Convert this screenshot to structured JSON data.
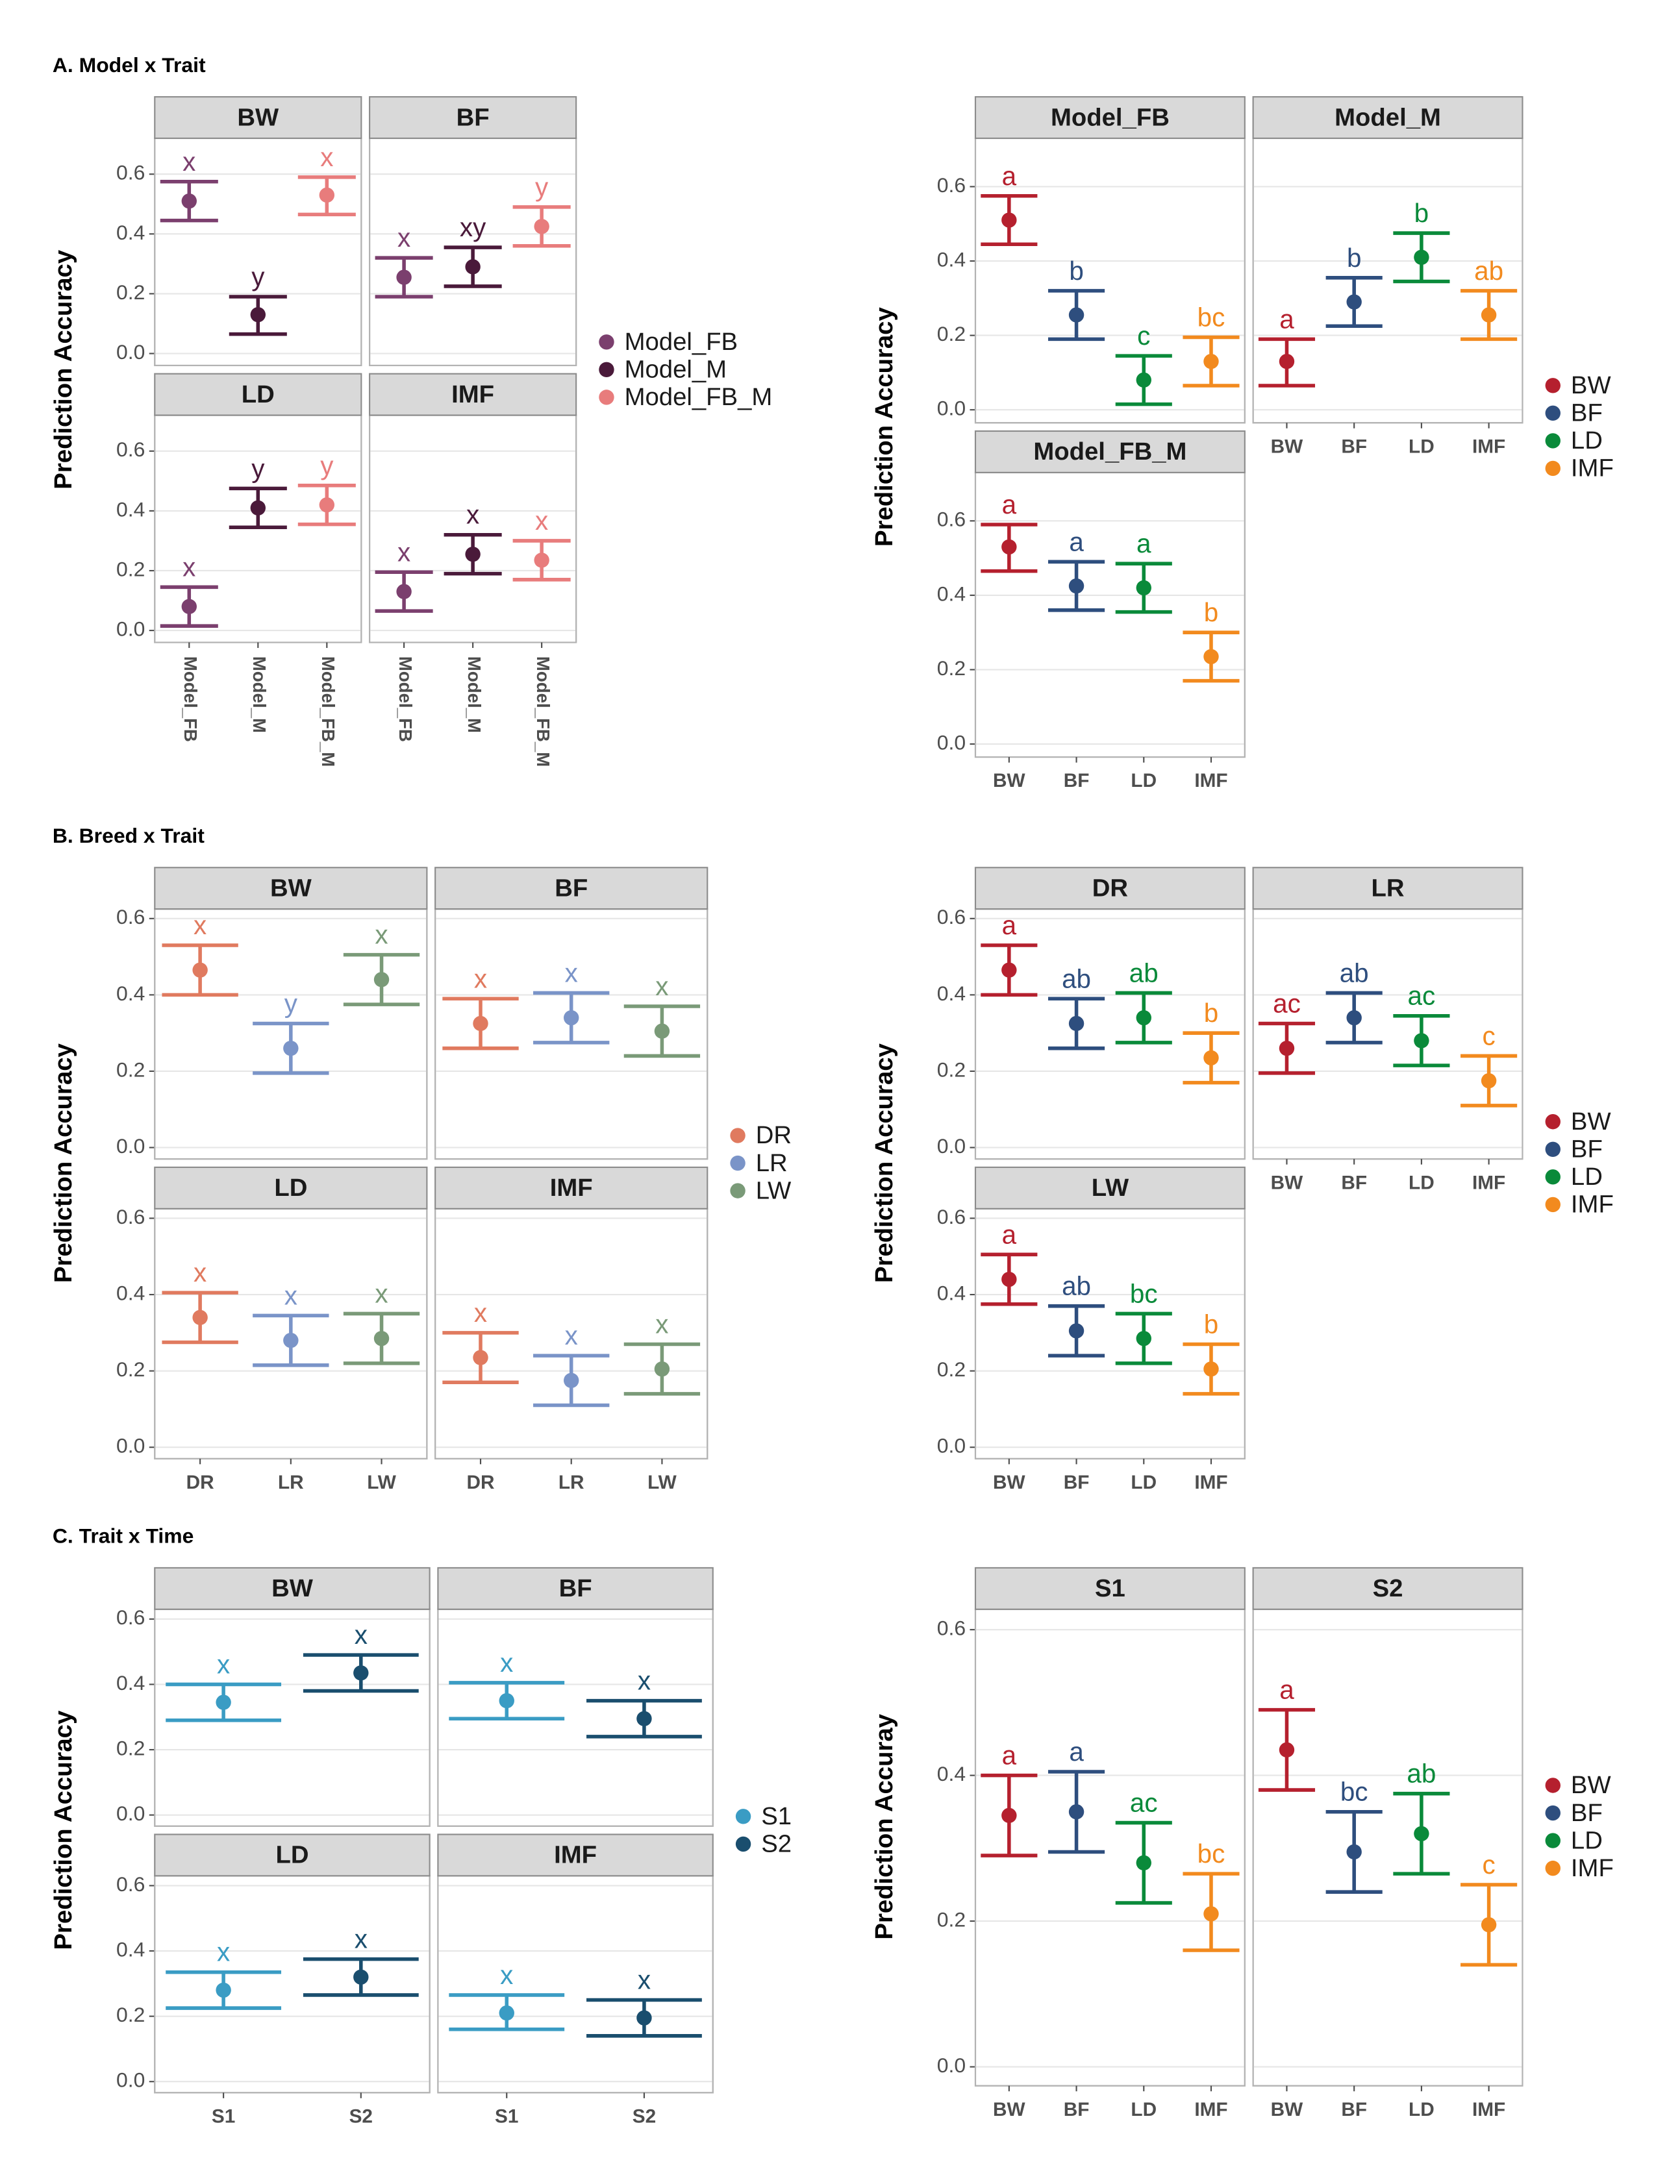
{
  "chart_data": [
    {
      "type": "errorbar",
      "title": "A. Model x Trait",
      "y_label": "Prediction Accuracy",
      "grid": true,
      "rotate_x_labels": true,
      "ylim": [
        -0.04,
        0.72
      ],
      "yticks": [
        {
          "value": 0,
          "label": "0.0"
        },
        0.2,
        0.4,
        0.6
      ],
      "categories": [
        "Model_FB",
        "Model_M",
        "Model_FB_M"
      ],
      "colors": [
        "#7b3f6e",
        "#4a1a3a",
        "#e87c7c"
      ],
      "facets": [
        {
          "title": "BW",
          "values": [
            0.51,
            0.13,
            0.53
          ],
          "lower": [
            0.445,
            0.065,
            0.465
          ],
          "upper": [
            0.575,
            0.19,
            0.59
          ],
          "letters": [
            "x",
            "y",
            "x"
          ]
        },
        {
          "title": "BF",
          "values": [
            0.255,
            0.29,
            0.425
          ],
          "lower": [
            0.19,
            0.225,
            0.36
          ],
          "upper": [
            0.32,
            0.355,
            0.49
          ],
          "letters": [
            "x",
            "xy",
            "y"
          ]
        },
        {
          "title": "LD",
          "values": [
            0.08,
            0.41,
            0.42
          ],
          "lower": [
            0.015,
            0.345,
            0.355
          ],
          "upper": [
            0.145,
            0.475,
            0.485
          ],
          "letters": [
            "x",
            "y",
            "y"
          ]
        },
        {
          "title": "IMF",
          "values": [
            0.13,
            0.255,
            0.235
          ],
          "lower": [
            0.065,
            0.19,
            0.17
          ],
          "upper": [
            0.195,
            0.32,
            0.3
          ],
          "letters": [
            "x",
            "x",
            "x"
          ]
        }
      ]
    },
    {
      "type": "errorbar",
      "y_label": "Prediction Accuracy",
      "grid": true,
      "ylim": [
        -0.035,
        0.73
      ],
      "yticks": [
        {
          "value": 0,
          "label": "0.0"
        },
        0.2,
        0.4,
        0.6
      ],
      "categories": [
        "BW",
        "BF",
        "LD",
        "IMF"
      ],
      "colors": [
        "#b5202e",
        "#2e4e7e",
        "#0a8a3a",
        "#f28a1e"
      ],
      "facets": [
        {
          "title": "Model_FB",
          "values": [
            0.51,
            0.255,
            0.08,
            0.13
          ],
          "lower": [
            0.445,
            0.19,
            0.015,
            0.065
          ],
          "upper": [
            0.575,
            0.32,
            0.145,
            0.195
          ],
          "letters": [
            "a",
            "b",
            "c",
            "bc"
          ]
        },
        {
          "title": "Model_M",
          "values": [
            0.13,
            0.29,
            0.41,
            0.255
          ],
          "lower": [
            0.065,
            0.225,
            0.345,
            0.19
          ],
          "upper": [
            0.19,
            0.355,
            0.475,
            0.32
          ],
          "letters": [
            "a",
            "b",
            "b",
            "ab"
          ]
        },
        {
          "title": "Model_FB_M",
          "values": [
            0.53,
            0.425,
            0.42,
            0.235
          ],
          "lower": [
            0.465,
            0.36,
            0.355,
            0.17
          ],
          "upper": [
            0.59,
            0.49,
            0.485,
            0.3
          ],
          "letters": [
            "a",
            "a",
            "a",
            "b"
          ]
        }
      ]
    },
    {
      "type": "errorbar",
      "title": "B. Breed x Trait",
      "y_label": "Prediction Accuracy",
      "grid": true,
      "ylim": [
        -0.03,
        0.625
      ],
      "yticks": [
        {
          "value": 0,
          "label": "0.0"
        },
        0.2,
        0.4,
        0.6
      ],
      "categories": [
        "DR",
        "LR",
        "LW"
      ],
      "colors": [
        "#e07a5f",
        "#7a94c8",
        "#7a9a78"
      ],
      "facets": [
        {
          "title": "BW",
          "values": [
            0.465,
            0.26,
            0.44
          ],
          "lower": [
            0.4,
            0.195,
            0.375
          ],
          "upper": [
            0.53,
            0.325,
            0.505
          ],
          "letters": [
            "x",
            "y",
            "x"
          ]
        },
        {
          "title": "BF",
          "values": [
            0.325,
            0.34,
            0.305
          ],
          "lower": [
            0.26,
            0.275,
            0.24
          ],
          "upper": [
            0.39,
            0.405,
            0.37
          ],
          "letters": [
            "x",
            "x",
            "x"
          ]
        },
        {
          "title": "LD",
          "values": [
            0.34,
            0.28,
            0.285
          ],
          "lower": [
            0.275,
            0.215,
            0.22
          ],
          "upper": [
            0.405,
            0.345,
            0.35
          ],
          "letters": [
            "x",
            "x",
            "x"
          ]
        },
        {
          "title": "IMF",
          "values": [
            0.235,
            0.175,
            0.205
          ],
          "lower": [
            0.17,
            0.11,
            0.14
          ],
          "upper": [
            0.3,
            0.24,
            0.27
          ],
          "letters": [
            "x",
            "x",
            "x"
          ]
        }
      ]
    },
    {
      "type": "errorbar",
      "y_label": "Prediction Accuracy",
      "grid": true,
      "ylim": [
        -0.03,
        0.625
      ],
      "yticks": [
        {
          "value": 0,
          "label": "0.0"
        },
        0.2,
        0.4,
        0.6
      ],
      "categories": [
        "BW",
        "BF",
        "LD",
        "IMF"
      ],
      "colors": [
        "#b5202e",
        "#2e4e7e",
        "#0a8a3a",
        "#f28a1e"
      ],
      "facets": [
        {
          "title": "DR",
          "values": [
            0.465,
            0.325,
            0.34,
            0.235
          ],
          "lower": [
            0.4,
            0.26,
            0.275,
            0.17
          ],
          "upper": [
            0.53,
            0.39,
            0.405,
            0.3
          ],
          "letters": [
            "a",
            "ab",
            "ab",
            "b"
          ]
        },
        {
          "title": "LR",
          "values": [
            0.26,
            0.34,
            0.28,
            0.175
          ],
          "lower": [
            0.195,
            0.275,
            0.215,
            0.11
          ],
          "upper": [
            0.325,
            0.405,
            0.345,
            0.24
          ],
          "letters": [
            "ac",
            "ab",
            "ac",
            "c"
          ]
        },
        {
          "title": "LW",
          "values": [
            0.44,
            0.305,
            0.285,
            0.205
          ],
          "lower": [
            0.375,
            0.24,
            0.22,
            0.14
          ],
          "upper": [
            0.505,
            0.37,
            0.35,
            0.27
          ],
          "letters": [
            "a",
            "ab",
            "bc",
            "b"
          ]
        }
      ]
    },
    {
      "type": "errorbar",
      "title": "C. Trait x Time",
      "y_label": "Prediction Accuracy",
      "grid": true,
      "ylim": [
        -0.034,
        0.63
      ],
      "yticks": [
        {
          "value": 0,
          "label": "0.0"
        },
        0.2,
        0.4,
        0.6
      ],
      "categories": [
        "S1",
        "S2"
      ],
      "colors": [
        "#3a9cc4",
        "#1a4e6e"
      ],
      "facets": [
        {
          "title": "BW",
          "values": [
            0.345,
            0.435
          ],
          "lower": [
            0.29,
            0.38
          ],
          "upper": [
            0.4,
            0.49
          ],
          "letters": [
            "x",
            "x"
          ]
        },
        {
          "title": "BF",
          "values": [
            0.35,
            0.295
          ],
          "lower": [
            0.295,
            0.24
          ],
          "upper": [
            0.405,
            0.35
          ],
          "letters": [
            "x",
            "x"
          ]
        },
        {
          "title": "LD",
          "values": [
            0.28,
            0.32
          ],
          "lower": [
            0.225,
            0.265
          ],
          "upper": [
            0.335,
            0.375
          ],
          "letters": [
            "x",
            "x"
          ]
        },
        {
          "title": "IMF",
          "values": [
            0.21,
            0.195
          ],
          "lower": [
            0.16,
            0.14
          ],
          "upper": [
            0.265,
            0.25
          ],
          "letters": [
            "x",
            "x"
          ]
        }
      ]
    },
    {
      "type": "errorbar",
      "y_label": "Prediction Accuray",
      "grid": true,
      "ylim": [
        -0.026,
        0.628
      ],
      "yticks": [
        {
          "value": 0,
          "label": "0.0"
        },
        0.2,
        0.4,
        0.6
      ],
      "categories": [
        "BW",
        "BF",
        "LD",
        "IMF"
      ],
      "colors": [
        "#b5202e",
        "#2e4e7e",
        "#0a8a3a",
        "#f28a1e"
      ],
      "facets": [
        {
          "title": "S1",
          "values": [
            0.345,
            0.35,
            0.28,
            0.21
          ],
          "lower": [
            0.29,
            0.295,
            0.225,
            0.16
          ],
          "upper": [
            0.4,
            0.405,
            0.335,
            0.265
          ],
          "letters": [
            "a",
            "a",
            "ac",
            "bc"
          ]
        },
        {
          "title": "S2",
          "values": [
            0.435,
            0.295,
            0.32,
            0.195
          ],
          "lower": [
            0.38,
            0.24,
            0.265,
            0.14
          ],
          "upper": [
            0.49,
            0.35,
            0.375,
            0.25
          ],
          "letters": [
            "a",
            "bc",
            "ab",
            "c"
          ]
        }
      ]
    }
  ]
}
